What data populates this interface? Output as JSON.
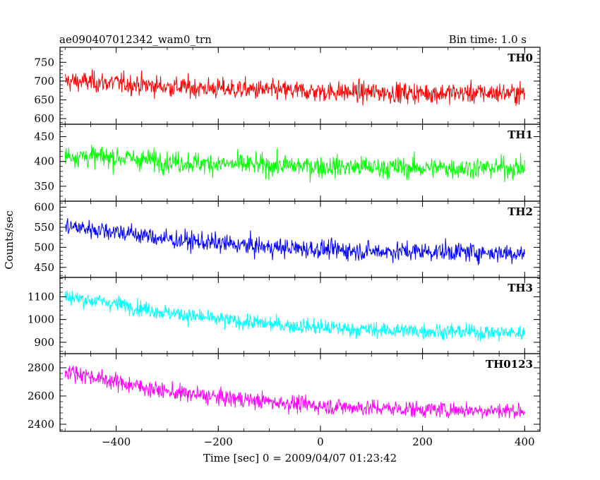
{
  "chart_data": {
    "type": "line",
    "title_left": "ae090407012342_wam0_trn",
    "title_right": "Bin time: 1.0 s",
    "xlabel": "Time [sec] 0 = 2009/04/07 01:23:42",
    "ylabel": "Counts/sec",
    "xlim": [
      -510,
      430
    ],
    "xticks": [
      -400,
      -200,
      0,
      200,
      400
    ],
    "xtick_labels": [
      "−400",
      "−200",
      "0",
      "200",
      "400"
    ],
    "grid": false,
    "panels": [
      {
        "name": "TH0",
        "color": "#ff0000",
        "ylim": [
          585,
          790
        ],
        "yticks": [
          600,
          650,
          700,
          750
        ],
        "ytick_labels": [
          "600",
          "650",
          "700",
          "750"
        ],
        "x_range": [
          -500,
          400
        ],
        "trend": [
          [
            -500,
            700
          ],
          [
            -400,
            695
          ],
          [
            -300,
            685
          ],
          [
            -200,
            680
          ],
          [
            -100,
            675
          ],
          [
            0,
            672
          ],
          [
            100,
            670
          ],
          [
            200,
            668
          ],
          [
            300,
            668
          ],
          [
            400,
            668
          ]
        ],
        "noise_sigma": 28
      },
      {
        "name": "TH1",
        "color": "#00ff00",
        "ylim": [
          320,
          475
        ],
        "yticks": [
          350,
          400,
          450
        ],
        "ytick_labels": [
          "350",
          "400",
          "450"
        ],
        "x_range": [
          -500,
          400
        ],
        "trend": [
          [
            -500,
            412
          ],
          [
            -400,
            408
          ],
          [
            -300,
            400
          ],
          [
            -200,
            395
          ],
          [
            -100,
            392
          ],
          [
            0,
            390
          ],
          [
            100,
            388
          ],
          [
            200,
            387
          ],
          [
            300,
            387
          ],
          [
            400,
            387
          ]
        ],
        "noise_sigma": 22
      },
      {
        "name": "TH2",
        "color": "#0000ff",
        "ylim": [
          425,
          615
        ],
        "yticks": [
          450,
          500,
          550,
          600
        ],
        "ytick_labels": [
          "450",
          "500",
          "550",
          "600"
        ],
        "x_range": [
          -500,
          400
        ],
        "trend": [
          [
            -500,
            552
          ],
          [
            -400,
            540
          ],
          [
            -300,
            520
          ],
          [
            -200,
            510
          ],
          [
            -100,
            500
          ],
          [
            0,
            495
          ],
          [
            100,
            490
          ],
          [
            200,
            490
          ],
          [
            300,
            488
          ],
          [
            400,
            485
          ]
        ],
        "noise_sigma": 24
      },
      {
        "name": "TH3",
        "color": "#00ffff",
        "ylim": [
          850,
          1185
        ],
        "yticks": [
          900,
          1000,
          1100
        ],
        "ytick_labels": [
          "900",
          "1000",
          "1100"
        ],
        "x_range": [
          -500,
          400
        ],
        "trend": [
          [
            -500,
            1100
          ],
          [
            -400,
            1070
          ],
          [
            -300,
            1030
          ],
          [
            -200,
            1000
          ],
          [
            -100,
            980
          ],
          [
            0,
            965
          ],
          [
            100,
            955
          ],
          [
            200,
            950
          ],
          [
            300,
            945
          ],
          [
            400,
            940
          ]
        ],
        "noise_sigma": 35
      },
      {
        "name": "TH0123",
        "color": "#ff00ff",
        "ylim": [
          2350,
          2900
        ],
        "yticks": [
          2400,
          2600,
          2800
        ],
        "ytick_labels": [
          "2400",
          "2600",
          "2800"
        ],
        "x_range": [
          -500,
          400
        ],
        "trend": [
          [
            -500,
            2780
          ],
          [
            -400,
            2700
          ],
          [
            -300,
            2630
          ],
          [
            -200,
            2590
          ],
          [
            -100,
            2560
          ],
          [
            0,
            2530
          ],
          [
            100,
            2515
          ],
          [
            200,
            2505
          ],
          [
            300,
            2500
          ],
          [
            400,
            2495
          ]
        ],
        "noise_sigma": 60
      }
    ]
  }
}
